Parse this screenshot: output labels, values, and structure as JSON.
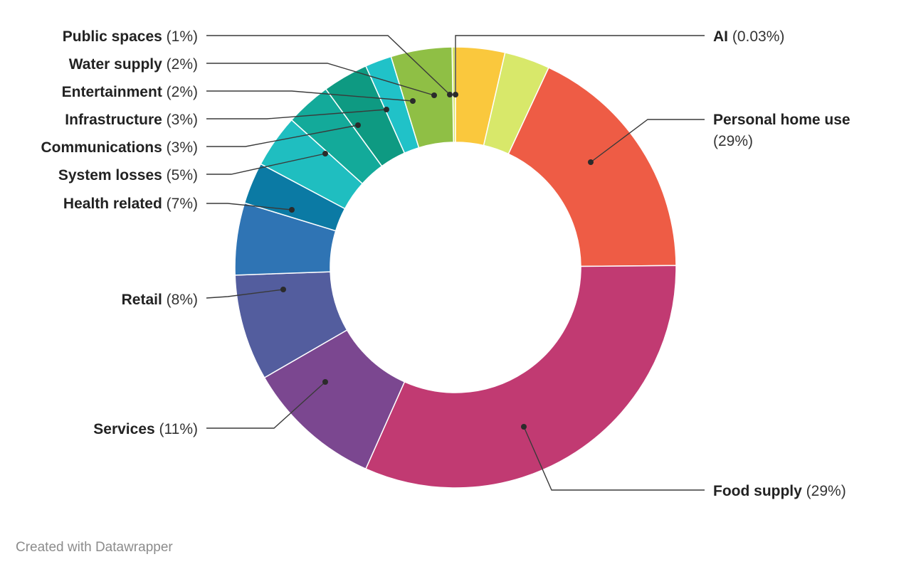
{
  "chart_data": {
    "type": "pie",
    "variant": "donut",
    "title": "",
    "legend": "none",
    "slices": [
      {
        "label": "AI",
        "value_label": "(0.03%)",
        "value": 0.03,
        "color": "#d8e86a"
      },
      {
        "label": "Public spaces",
        "value_label": "(1%)",
        "value": 1,
        "color": "#c5e04c"
      },
      {
        "label": "Personal home use",
        "value_label": "(29%)",
        "value": 29,
        "color": "#ee5c45"
      },
      {
        "label": "Food supply",
        "value_label": "(29%)",
        "value": 29,
        "color": "#c13a72"
      },
      {
        "label": "Services",
        "value_label": "(11%)",
        "value": 11,
        "color": "#7b4790"
      },
      {
        "label": "Retail",
        "value_label": "(8%)",
        "value": 8,
        "color": "#535d9e"
      },
      {
        "label": "Health related",
        "value_label": "(7%)",
        "value": 7,
        "color": "#2f74b4"
      },
      {
        "label": "System losses",
        "value_label": "(5%)",
        "value": 5,
        "color": "#0b7aa4"
      },
      {
        "label": "Communications",
        "value_label": "(3%)",
        "value": 3,
        "color": "#1fbec0"
      },
      {
        "label": "Infrastructure",
        "value_label": "(3%)",
        "value": 3,
        "color": "#13aa9a"
      },
      {
        "label": "Entertainment",
        "value_label": "(2%)",
        "value": 2,
        "color": "#0e9a82"
      },
      {
        "label": "Water supply",
        "value_label": "(2%)",
        "value": 2,
        "color": "#20c2c8"
      },
      {
        "label": "Public spaces",
        "value_label": "(1%)",
        "value": 1,
        "color": "#8fbf45"
      }
    ],
    "extra_segments": [
      {
        "color": "#fac83d"
      }
    ]
  },
  "footer": {
    "credit": "Created with Datawrapper"
  }
}
